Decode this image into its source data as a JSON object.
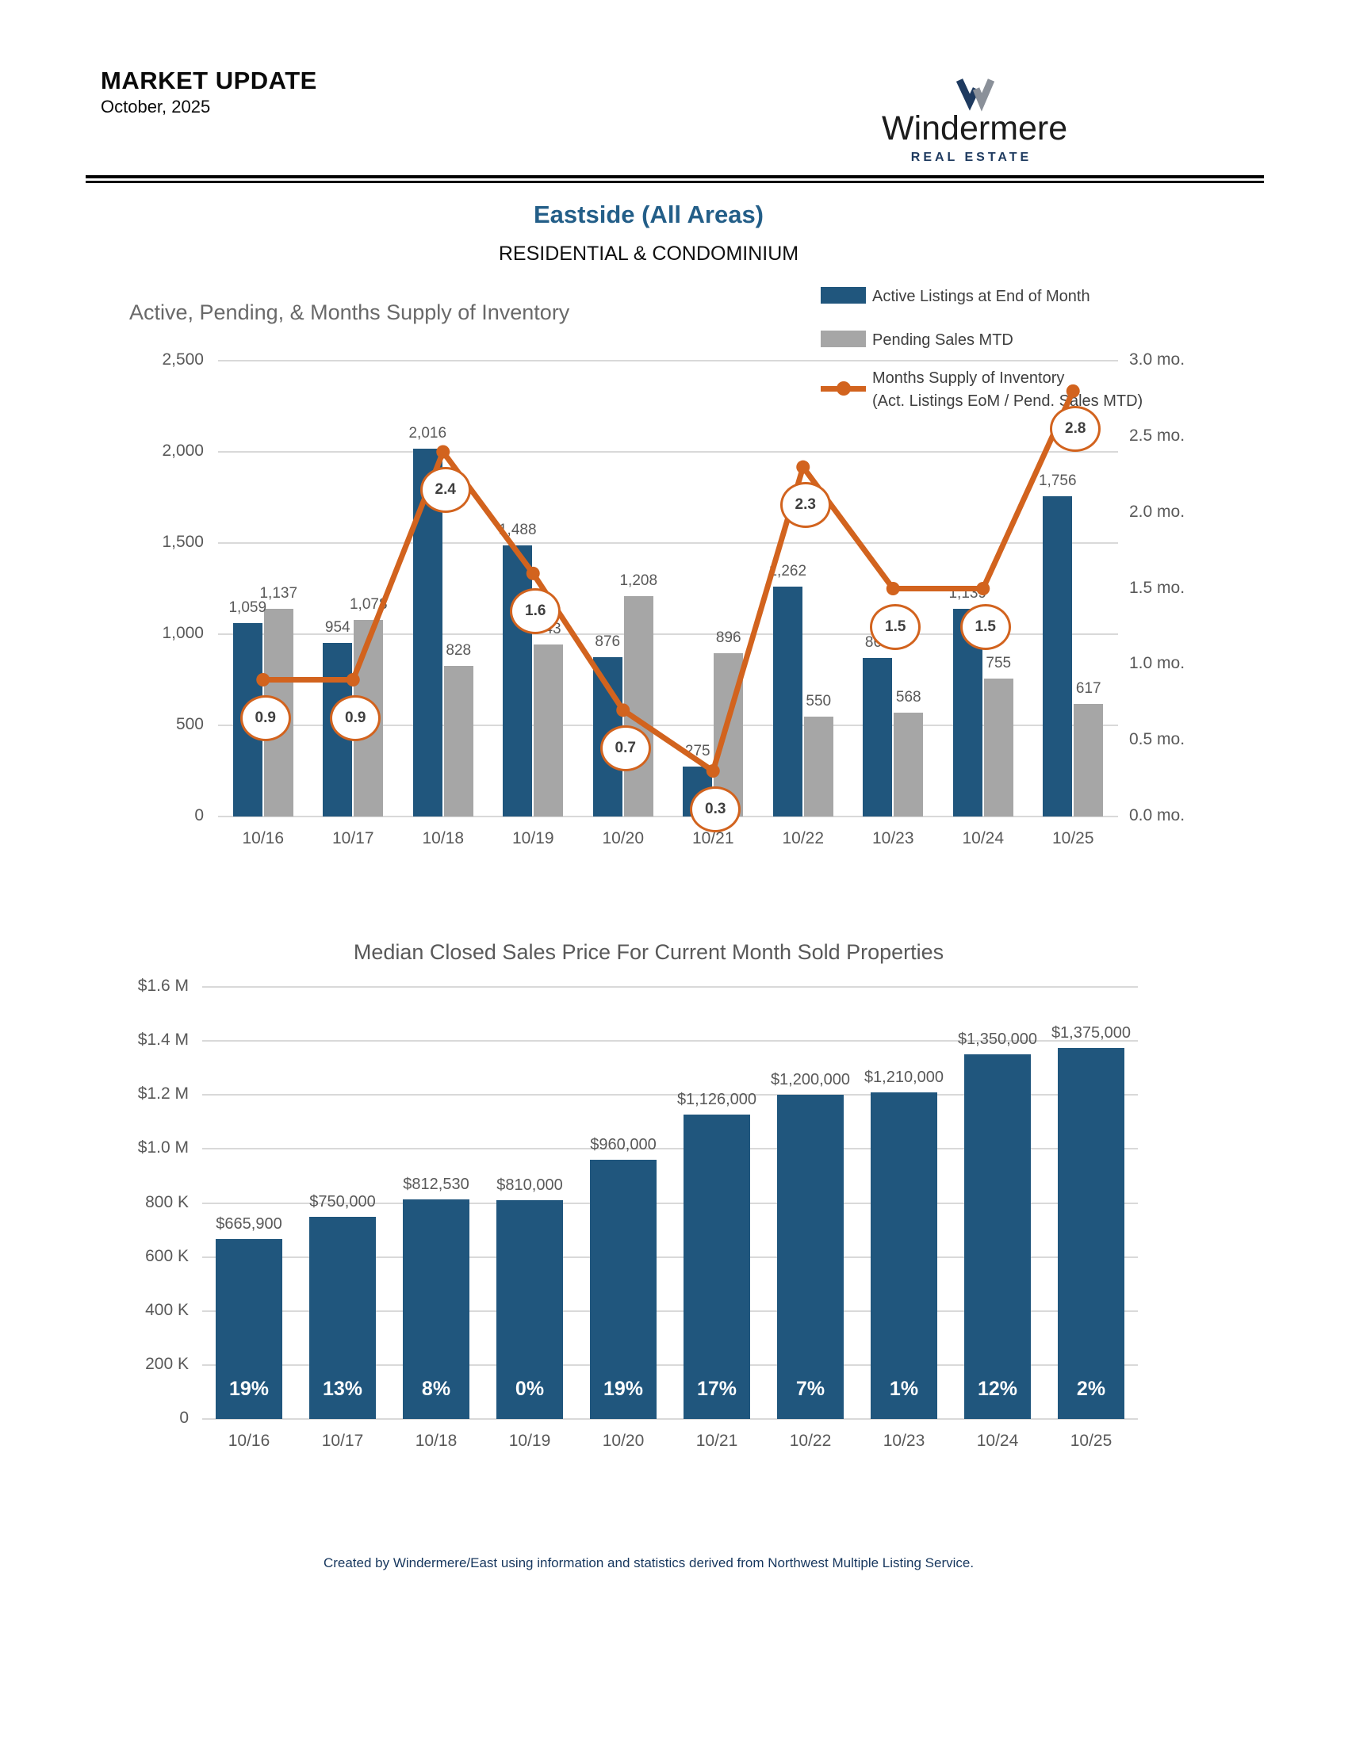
{
  "header": {
    "title": "MARKET UPDATE",
    "date": "October, 2025",
    "logo": {
      "name": "Windermere",
      "tagline": "REAL ESTATE"
    }
  },
  "page": {
    "region_title": "Eastside (All Areas)",
    "subtitle": "RESIDENTIAL & CONDOMINIUM",
    "footer": "Created by Windermere/East using information and statistics derived from Northwest Multiple Listing Service."
  },
  "colors": {
    "bar_blue": "#20567D",
    "bar_gray": "#A6A6A6",
    "line_orange": "#D2631E",
    "title_blue": "#235E88",
    "footer_navy": "#17375E",
    "logo_navy": "#1E3A5F",
    "logo_gray": "#8A9099"
  },
  "chart_data": [
    {
      "type": "bar+line",
      "title": "Active, Pending, & Months Supply of Inventory",
      "categories": [
        "10/16",
        "10/17",
        "10/18",
        "10/19",
        "10/20",
        "10/21",
        "10/22",
        "10/23",
        "10/24",
        "10/25"
      ],
      "series": [
        {
          "name": "Active Listings at End of Month",
          "type": "bar",
          "color": "#20567D",
          "values": [
            1059,
            954,
            2016,
            1488,
            876,
            275,
            1262,
            869,
            1139,
            1756
          ],
          "labels": [
            "1,059",
            "954",
            "2,016",
            "1,488",
            "876",
            "275",
            "1,262",
            "869",
            "1,139",
            "1,756"
          ]
        },
        {
          "name": "Pending Sales MTD",
          "type": "bar",
          "color": "#A6A6A6",
          "values": [
            1137,
            1078,
            828,
            943,
            1208,
            896,
            550,
            568,
            755,
            617
          ],
          "labels": [
            "1,137",
            "1,078",
            "828",
            "943",
            "1,208",
            "896",
            "550",
            "568",
            "755",
            "617"
          ]
        },
        {
          "name": "Months Supply of Inventory",
          "sublabel": "(Act. Listings EoM / Pend. Sales MTD)",
          "type": "line",
          "color": "#D2631E",
          "values": [
            0.9,
            0.9,
            2.4,
            1.6,
            0.7,
            0.3,
            2.3,
            1.5,
            1.5,
            2.8
          ],
          "labels": [
            "0.9",
            "0.9",
            "2.4",
            "1.6",
            "0.7",
            "0.3",
            "2.3",
            "1.5",
            "1.5",
            "2.8"
          ]
        }
      ],
      "left_axis": {
        "ticks": [
          "2,500",
          "2,000",
          "1,500",
          "1,000",
          "500",
          "0"
        ],
        "max": 2500,
        "grid": true
      },
      "right_axis": {
        "ticks": [
          "3.0 mo.",
          "2.5 mo.",
          "2.0 mo.",
          "1.5 mo.",
          "1.0 mo.",
          "0.5 mo.",
          "0.0 mo."
        ],
        "max": 3.0
      },
      "legend_position": "top-right"
    },
    {
      "type": "bar",
      "title": "Median Closed Sales Price For Current Month Sold Properties",
      "categories": [
        "10/16",
        "10/17",
        "10/18",
        "10/19",
        "10/20",
        "10/21",
        "10/22",
        "10/23",
        "10/24",
        "10/25"
      ],
      "values": [
        665900,
        750000,
        812530,
        810000,
        960000,
        1126000,
        1200000,
        1210000,
        1350000,
        1375000
      ],
      "labels": [
        "$665,900",
        "$750,000",
        "$812,530",
        "$810,000",
        "$960,000",
        "$1,126,000",
        "$1,200,000",
        "$1,210,000",
        "$1,350,000",
        "$1,375,000"
      ],
      "pct_labels": [
        "19%",
        "13%",
        "8%",
        "0%",
        "19%",
        "17%",
        "7%",
        "1%",
        "12%",
        "2%"
      ],
      "y_axis": {
        "ticks": [
          "$1.6 M",
          "$1.4 M",
          "$1.2 M",
          "$1.0 M",
          "800 K",
          "600 K",
          "400 K",
          "200 K",
          "0"
        ],
        "max": 1600000,
        "grid": true
      },
      "bar_color": "#20567D",
      "ylabel": "",
      "xlabel": ""
    }
  ]
}
